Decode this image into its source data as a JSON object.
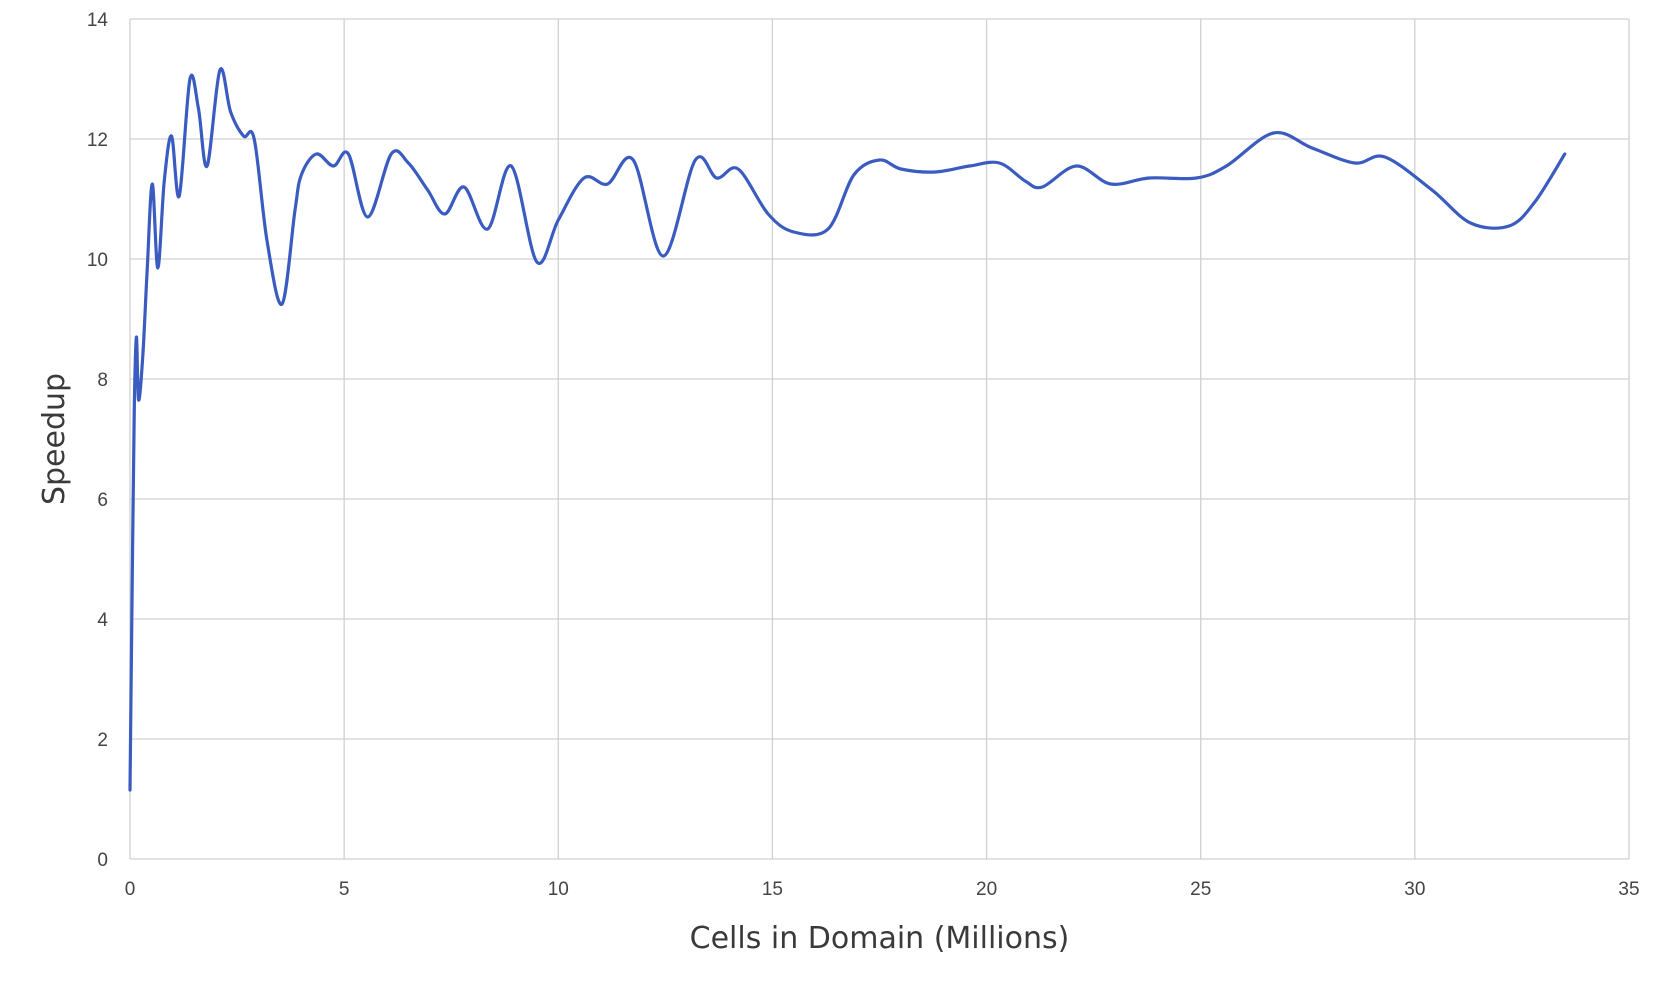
{
  "chart_data": {
    "type": "line",
    "title": "",
    "xlabel": "Cells in Domain (Millions)",
    "ylabel": "Speedup",
    "xlim": [
      0,
      35
    ],
    "ylim": [
      0,
      14
    ],
    "xticks": [
      0,
      5,
      10,
      15,
      20,
      25,
      30,
      35
    ],
    "yticks": [
      0,
      2,
      4,
      6,
      8,
      10,
      12,
      14
    ],
    "grid": true,
    "legend": "none",
    "series": [
      {
        "color": "#3a5bbf",
        "points": [
          [
            0.0,
            1.15
          ],
          [
            0.05,
            4.5
          ],
          [
            0.1,
            7.5
          ],
          [
            0.15,
            8.7
          ],
          [
            0.2,
            7.65
          ],
          [
            0.3,
            8.4
          ],
          [
            0.4,
            9.8
          ],
          [
            0.52,
            11.25
          ],
          [
            0.65,
            9.85
          ],
          [
            0.8,
            11.3
          ],
          [
            0.97,
            12.05
          ],
          [
            1.15,
            11.05
          ],
          [
            1.4,
            13.0
          ],
          [
            1.6,
            12.5
          ],
          [
            1.8,
            11.55
          ],
          [
            2.1,
            13.15
          ],
          [
            2.35,
            12.45
          ],
          [
            2.65,
            12.05
          ],
          [
            2.9,
            12.0
          ],
          [
            3.2,
            10.3
          ],
          [
            3.55,
            9.25
          ],
          [
            3.85,
            10.8
          ],
          [
            4.0,
            11.4
          ],
          [
            4.35,
            11.75
          ],
          [
            4.75,
            11.55
          ],
          [
            5.1,
            11.75
          ],
          [
            5.55,
            10.7
          ],
          [
            6.1,
            11.75
          ],
          [
            6.5,
            11.6
          ],
          [
            6.95,
            11.15
          ],
          [
            7.35,
            10.75
          ],
          [
            7.8,
            11.2
          ],
          [
            8.35,
            10.5
          ],
          [
            8.9,
            11.55
          ],
          [
            9.5,
            9.95
          ],
          [
            10.0,
            10.65
          ],
          [
            10.6,
            11.35
          ],
          [
            11.15,
            11.25
          ],
          [
            11.75,
            11.65
          ],
          [
            12.45,
            10.05
          ],
          [
            13.2,
            11.65
          ],
          [
            13.7,
            11.35
          ],
          [
            14.2,
            11.5
          ],
          [
            14.9,
            10.75
          ],
          [
            15.5,
            10.45
          ],
          [
            16.3,
            10.5
          ],
          [
            16.9,
            11.4
          ],
          [
            17.5,
            11.65
          ],
          [
            18.0,
            11.5
          ],
          [
            18.8,
            11.45
          ],
          [
            19.6,
            11.55
          ],
          [
            20.3,
            11.6
          ],
          [
            20.9,
            11.3
          ],
          [
            21.3,
            11.2
          ],
          [
            22.1,
            11.55
          ],
          [
            22.9,
            11.25
          ],
          [
            23.8,
            11.35
          ],
          [
            24.9,
            11.35
          ],
          [
            25.6,
            11.55
          ],
          [
            26.7,
            12.1
          ],
          [
            27.6,
            11.85
          ],
          [
            28.6,
            11.6
          ],
          [
            29.3,
            11.7
          ],
          [
            30.4,
            11.15
          ],
          [
            31.3,
            10.6
          ],
          [
            32.2,
            10.55
          ],
          [
            32.8,
            10.95
          ],
          [
            33.5,
            11.75
          ]
        ]
      }
    ]
  }
}
